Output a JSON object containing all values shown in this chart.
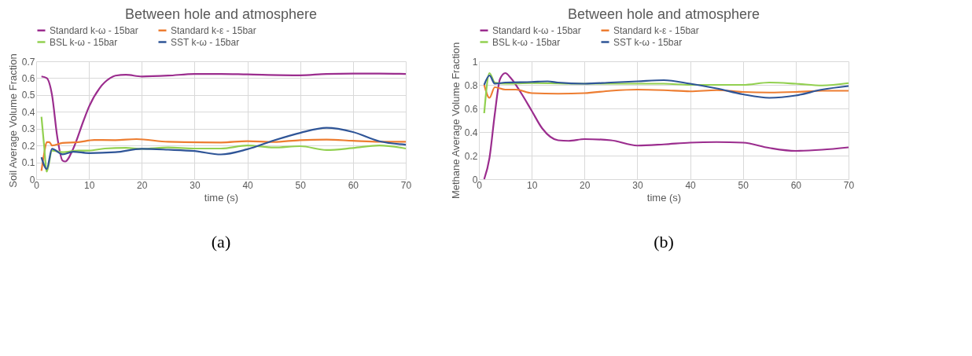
{
  "chart_data": [
    {
      "type": "line",
      "title": "Between hole and atmosphere",
      "xlabel": "time (s)",
      "ylabel": "Soil Average Volume Fraction",
      "xlim": [
        0,
        70
      ],
      "xticks": [
        0,
        10,
        20,
        30,
        40,
        50,
        60,
        70
      ],
      "ylim": [
        0,
        0.7
      ],
      "yticks": [
        0,
        0.1,
        0.2,
        0.3,
        0.4,
        0.5,
        0.6,
        0.7
      ],
      "grid": true,
      "legend": "top",
      "marker": "none",
      "line_style": "solid",
      "annotations": [
        "(a)"
      ],
      "series": [
        {
          "name": "Standard k-ω - 15bar",
          "color": "#9b2d8e",
          "x": [
            1,
            2,
            3,
            4,
            5,
            5.5,
            7,
            9,
            10,
            12,
            14,
            15,
            17,
            20,
            25,
            30,
            35,
            40,
            50,
            55,
            60,
            65,
            70
          ],
          "values": [
            0.61,
            0.6,
            0.5,
            0.25,
            0.11,
            0.105,
            0.18,
            0.35,
            0.43,
            0.54,
            0.6,
            0.615,
            0.62,
            0.61,
            0.615,
            0.625,
            0.625,
            0.622,
            0.617,
            0.625,
            0.627,
            0.627,
            0.625
          ]
        },
        {
          "name": "Standard k-ε - 15bar",
          "color": "#ed7d31",
          "x": [
            1,
            1.5,
            2,
            2.5,
            3,
            5,
            8,
            11,
            15,
            19,
            25,
            35,
            40,
            45,
            50,
            55,
            60,
            65,
            70
          ],
          "values": [
            0.05,
            0.15,
            0.22,
            0.22,
            0.2,
            0.215,
            0.22,
            0.233,
            0.232,
            0.238,
            0.222,
            0.218,
            0.226,
            0.221,
            0.232,
            0.235,
            0.228,
            0.222,
            0.222
          ]
        },
        {
          "name": "BSL k-ω - 15bar",
          "color": "#92d050",
          "x": [
            1,
            1.5,
            2,
            3,
            5,
            8,
            10,
            13,
            17,
            20,
            25,
            30,
            35,
            40,
            45,
            50,
            55,
            60,
            65,
            70
          ],
          "values": [
            0.37,
            0.2,
            0.045,
            0.17,
            0.16,
            0.17,
            0.17,
            0.182,
            0.186,
            0.18,
            0.188,
            0.182,
            0.182,
            0.2,
            0.188,
            0.196,
            0.173,
            0.185,
            0.2,
            0.182
          ]
        },
        {
          "name": "SST k-ω - 15bar",
          "color": "#2f5597",
          "x": [
            1,
            2,
            3,
            5,
            7,
            10,
            15,
            20,
            25,
            30,
            35,
            40,
            45,
            50,
            55,
            60,
            65,
            70
          ],
          "values": [
            0.13,
            0.06,
            0.18,
            0.148,
            0.163,
            0.155,
            0.16,
            0.18,
            0.175,
            0.167,
            0.147,
            0.178,
            0.23,
            0.275,
            0.305,
            0.28,
            0.225,
            0.205
          ]
        }
      ]
    },
    {
      "type": "line",
      "title": "Between hole and atmosphere",
      "xlabel": "time (s)",
      "ylabel": "Methane Average Volume Fraction",
      "xlim": [
        0,
        70
      ],
      "xticks": [
        0,
        10,
        20,
        30,
        40,
        50,
        60,
        70
      ],
      "ylim": [
        0,
        1
      ],
      "yticks": [
        0,
        0.2,
        0.4,
        0.6,
        0.8,
        1
      ],
      "grid": true,
      "legend": "top",
      "marker": "none",
      "line_style": "solid",
      "annotations": [
        "(b)"
      ],
      "series": [
        {
          "name": "Standard k-ω - 15bar",
          "color": "#9b2d8e",
          "x": [
            1,
            2,
            3,
            4,
            5,
            6,
            8,
            10,
            12,
            15,
            17,
            20,
            25,
            30,
            35,
            40,
            45,
            50,
            55,
            60,
            65,
            70
          ],
          "values": [
            0,
            0.18,
            0.55,
            0.85,
            0.9,
            0.86,
            0.73,
            0.58,
            0.43,
            0.33,
            0.325,
            0.34,
            0.33,
            0.285,
            0.295,
            0.31,
            0.315,
            0.31,
            0.265,
            0.24,
            0.25,
            0.27
          ]
        },
        {
          "name": "Standard k-ε - 15bar",
          "color": "#ed7d31",
          "x": [
            1,
            2,
            3,
            5,
            7,
            10,
            15,
            20,
            25,
            30,
            35,
            40,
            45,
            50,
            55,
            60,
            65,
            70
          ],
          "values": [
            0.8,
            0.69,
            0.78,
            0.76,
            0.76,
            0.73,
            0.725,
            0.73,
            0.75,
            0.76,
            0.755,
            0.745,
            0.755,
            0.74,
            0.735,
            0.74,
            0.75,
            0.75
          ]
        },
        {
          "name": "BSL k-ω - 15bar",
          "color": "#92d050",
          "x": [
            1,
            2,
            3,
            5,
            10,
            20,
            30,
            35,
            40,
            50,
            55,
            60,
            65,
            70
          ],
          "values": [
            0.56,
            0.9,
            0.82,
            0.81,
            0.815,
            0.81,
            0.81,
            0.81,
            0.8,
            0.8,
            0.82,
            0.81,
            0.795,
            0.815
          ]
        },
        {
          "name": "SST k-ω - 15bar",
          "color": "#2f5597",
          "x": [
            1,
            2,
            3,
            5,
            10,
            13,
            15,
            20,
            25,
            30,
            35,
            40,
            45,
            50,
            55,
            60,
            65,
            70
          ],
          "values": [
            0.8,
            0.88,
            0.81,
            0.82,
            0.825,
            0.83,
            0.82,
            0.81,
            0.82,
            0.83,
            0.84,
            0.81,
            0.77,
            0.72,
            0.69,
            0.71,
            0.76,
            0.79
          ]
        }
      ]
    }
  ]
}
